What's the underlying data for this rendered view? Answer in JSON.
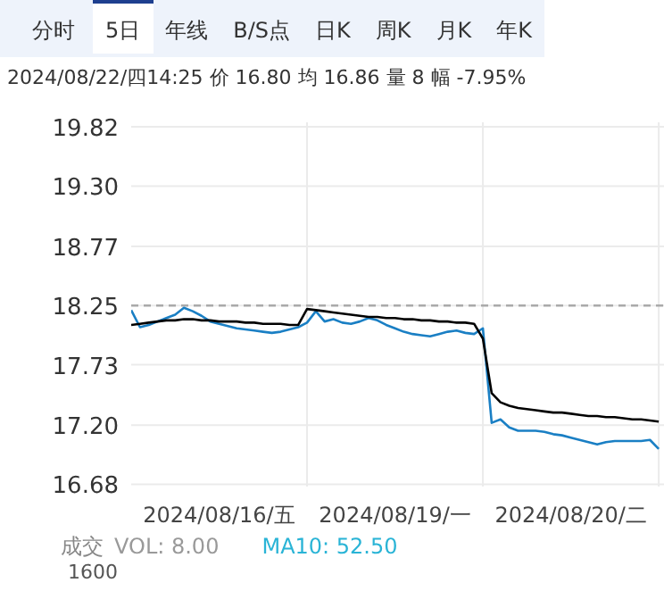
{
  "chart_data": {
    "type": "line",
    "title": "2024/08/22/四14:25 价 16.80 均 16.86 量 8 幅 -7.95%",
    "annotations": [
      "分时",
      "5日",
      "年线",
      "B/S点",
      "日K",
      "周K",
      "月K",
      "年K",
      "成交",
      "VOL: 8.00",
      "MA10: 52.50",
      "1600"
    ],
    "categories": [
      null,
      null,
      null,
      null,
      null,
      null,
      null,
      null,
      null,
      null,
      "2024/08/16/五",
      null,
      null,
      null,
      null,
      null,
      null,
      null,
      null,
      null,
      null,
      null,
      null,
      null,
      null,
      null,
      null,
      null,
      null,
      null,
      "2024/08/19/一",
      null,
      null,
      null,
      null,
      null,
      null,
      null,
      null,
      null,
      null,
      null,
      null,
      null,
      null,
      null,
      null,
      null,
      null,
      null,
      "2024/08/20/二",
      null,
      null,
      null,
      null,
      null,
      null,
      null,
      null,
      null,
      null
    ],
    "ylim": [
      16.66,
      19.86
    ],
    "yticks": [
      16.68,
      {
        "value": 17.2,
        "label": "17.20"
      },
      17.73,
      18.25,
      18.77,
      {
        "value": 19.3,
        "label": "19.30"
      },
      19.82
    ],
    "grid": true,
    "ref_lines": [
      {
        "axis": "y",
        "value": 18.25,
        "color": "#aaaaaa",
        "line_style": "dashed"
      }
    ],
    "series": [
      {
        "color": "#1a7fc4",
        "values": [
          18.21,
          18.06,
          18.08,
          18.11,
          18.14,
          18.17,
          18.23,
          18.2,
          18.16,
          18.11,
          18.09,
          18.07,
          18.05,
          18.04,
          18.03,
          18.02,
          18.01,
          18.02,
          18.04,
          18.06,
          18.1,
          18.2,
          18.11,
          18.13,
          18.1,
          18.09,
          18.11,
          18.14,
          18.12,
          18.08,
          18.05,
          18.02,
          18.0,
          17.99,
          17.98,
          18.0,
          18.02,
          18.03,
          18.01,
          18.0,
          18.05,
          17.22,
          17.25,
          17.18,
          17.15,
          17.15,
          17.15,
          17.14,
          17.12,
          17.11,
          17.09,
          17.07,
          17.05,
          17.03,
          17.05,
          17.06,
          17.06,
          17.06,
          17.06,
          17.07,
          16.99
        ]
      },
      {
        "color": "#000000",
        "values": [
          18.08,
          18.09,
          18.1,
          18.11,
          18.12,
          18.12,
          18.13,
          18.13,
          18.12,
          18.12,
          18.11,
          18.11,
          18.11,
          18.1,
          18.1,
          18.09,
          18.09,
          18.09,
          18.08,
          18.08,
          18.22,
          18.21,
          18.2,
          18.19,
          18.18,
          18.17,
          18.16,
          18.15,
          18.15,
          18.14,
          18.14,
          18.13,
          18.13,
          18.12,
          18.12,
          18.11,
          18.11,
          18.1,
          18.1,
          18.09,
          17.96,
          17.48,
          17.4,
          17.37,
          17.35,
          17.34,
          17.33,
          17.32,
          17.31,
          17.31,
          17.3,
          17.29,
          17.28,
          17.28,
          17.27,
          17.27,
          17.26,
          17.25,
          17.25,
          17.24,
          17.23
        ]
      }
    ]
  }
}
